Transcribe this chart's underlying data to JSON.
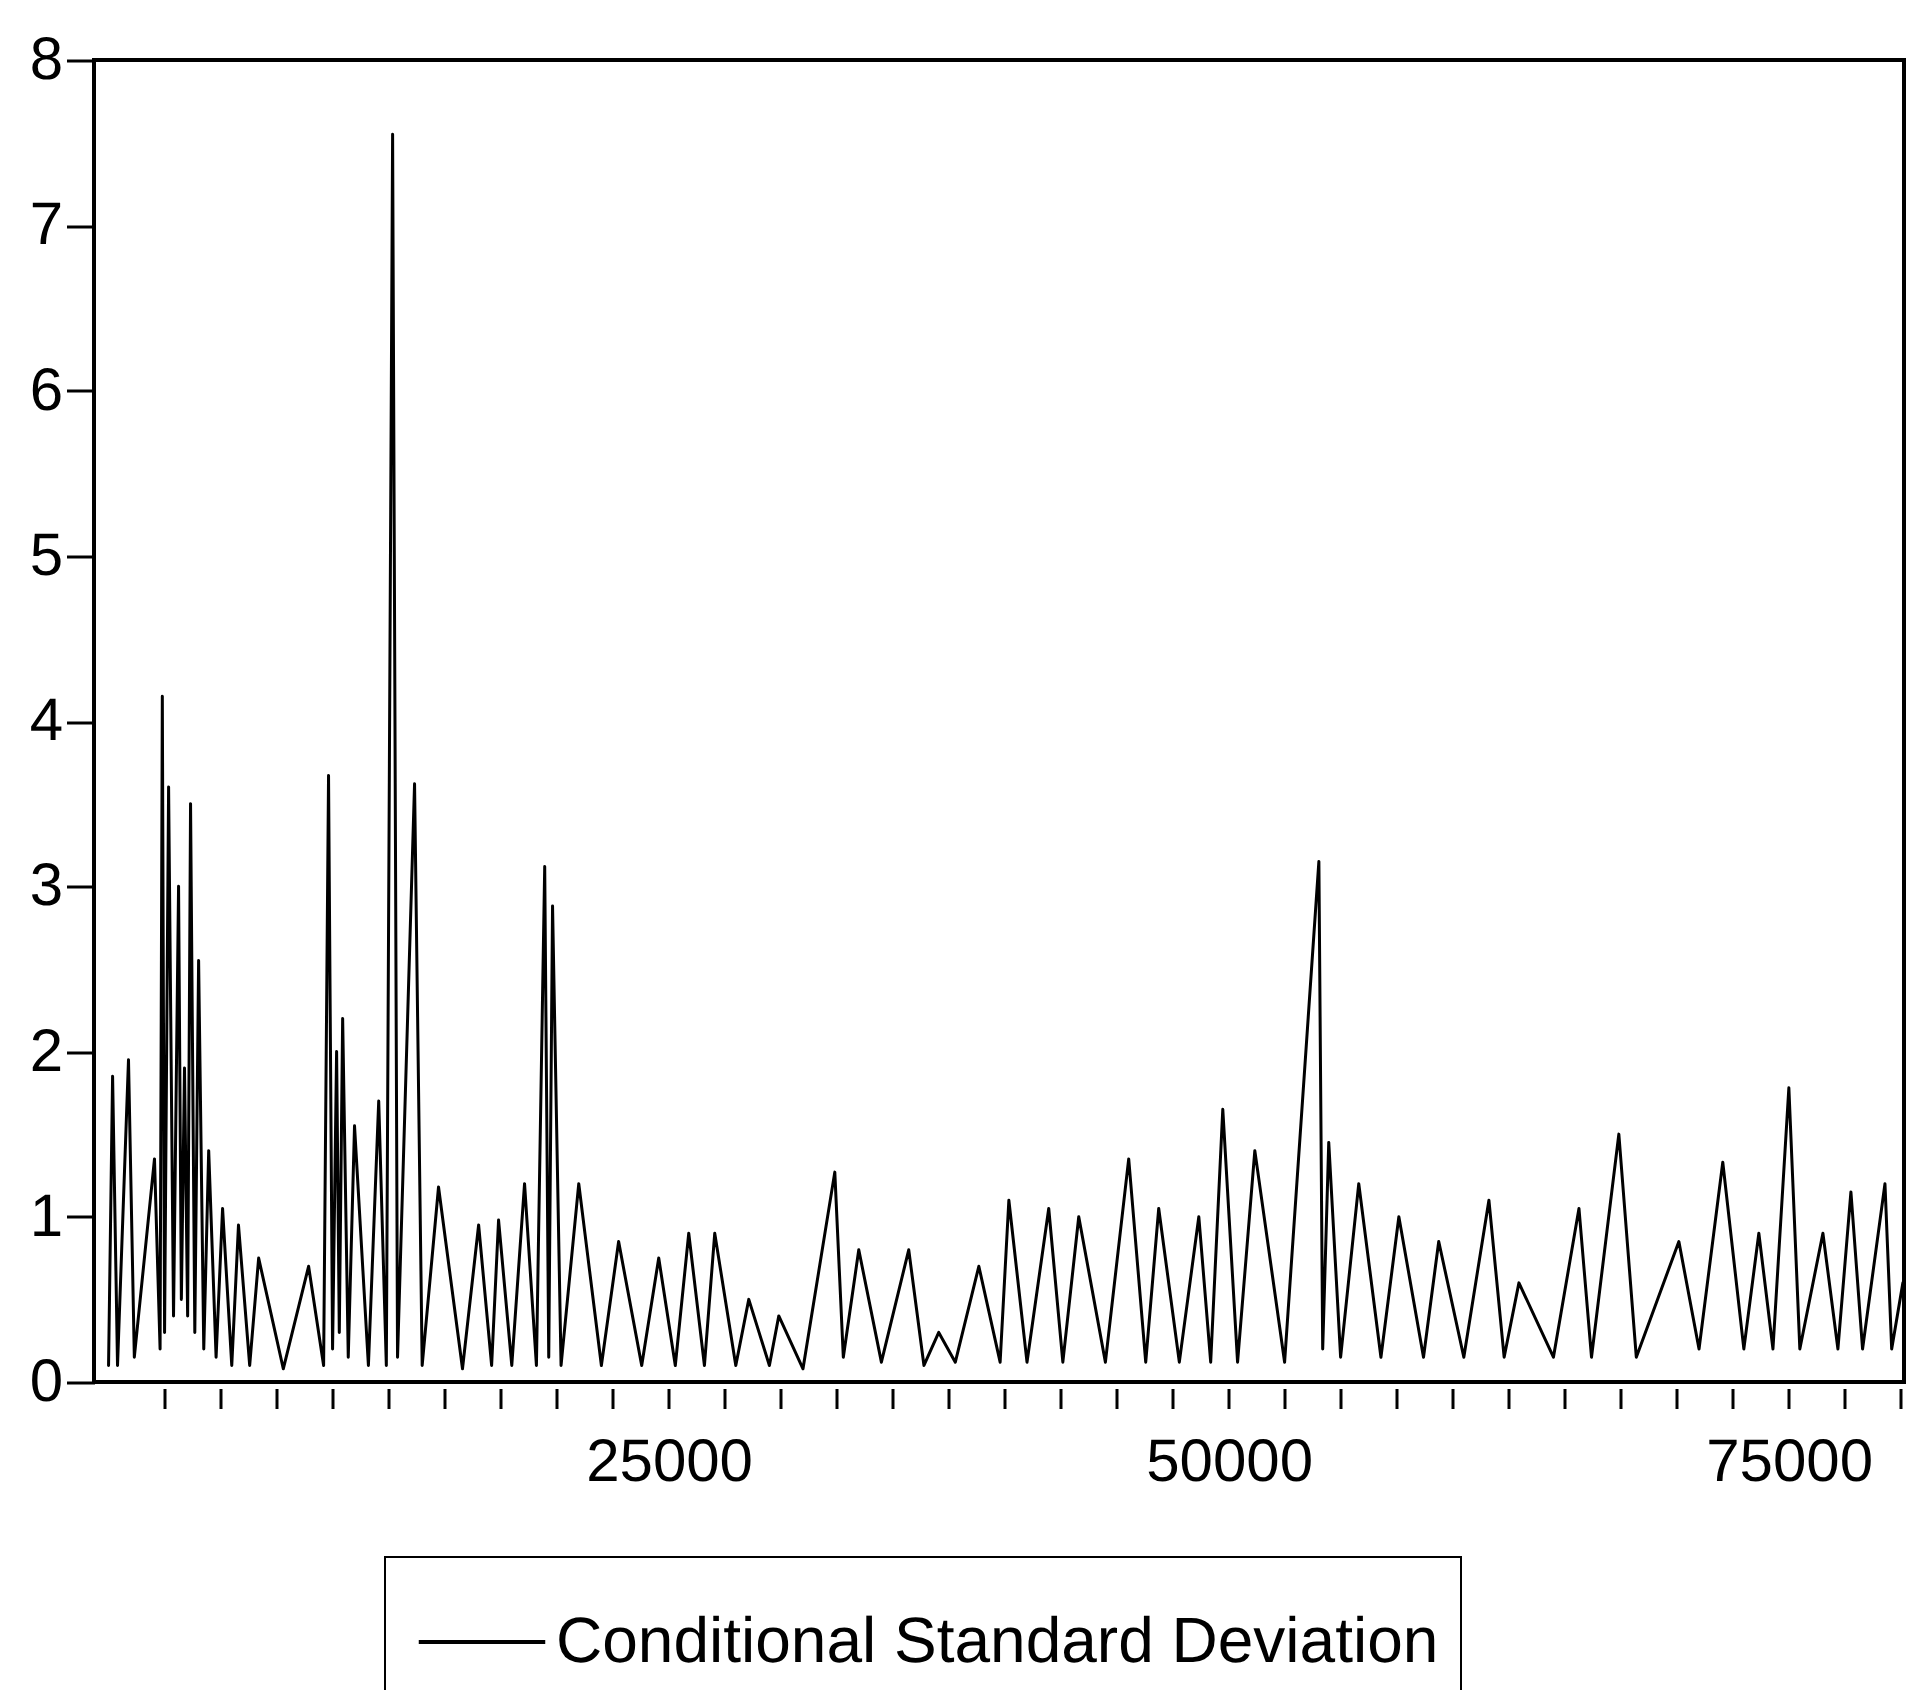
{
  "chart_data": {
    "type": "line",
    "legend": "bottom",
    "line_style": "solid",
    "xlim": [
      -650,
      80150
    ],
    "xticks": [
      {
        "value": 2500,
        "label": null
      },
      {
        "value": 5000,
        "label": null
      },
      {
        "value": 7500,
        "label": null
      },
      {
        "value": 10000,
        "label": null
      },
      {
        "value": 12500,
        "label": null
      },
      {
        "value": 15000,
        "label": null
      },
      {
        "value": 17500,
        "label": null
      },
      {
        "value": 20000,
        "label": null
      },
      {
        "value": 22500,
        "label": null
      },
      25000,
      {
        "value": 27500,
        "label": null
      },
      {
        "value": 30000,
        "label": null
      },
      {
        "value": 32500,
        "label": null
      },
      {
        "value": 35000,
        "label": null
      },
      {
        "value": 37500,
        "label": null
      },
      {
        "value": 40000,
        "label": null
      },
      {
        "value": 42500,
        "label": null
      },
      {
        "value": 45000,
        "label": null
      },
      {
        "value": 47500,
        "label": null
      },
      50000,
      {
        "value": 52500,
        "label": null
      },
      {
        "value": 55000,
        "label": null
      },
      {
        "value": 57500,
        "label": null
      },
      {
        "value": 60000,
        "label": null
      },
      {
        "value": 62500,
        "label": null
      },
      {
        "value": 65000,
        "label": null
      },
      {
        "value": 67500,
        "label": null
      },
      {
        "value": 70000,
        "label": null
      },
      {
        "value": 72500,
        "label": null
      },
      75000,
      {
        "value": 77500,
        "label": null
      },
      {
        "value": 80000,
        "label": null
      }
    ],
    "ylim": [
      0,
      8
    ],
    "yticks": [
      0,
      1,
      2,
      3,
      4,
      5,
      6,
      7,
      8
    ],
    "x": [
      0,
      180,
      400,
      890,
      1150,
      2050,
      2300,
      2400,
      2500,
      2680,
      2900,
      3125,
      3250,
      3390,
      3530,
      3660,
      3850,
      4020,
      4250,
      4470,
      4800,
      5090,
      5500,
      5800,
      6300,
      6700,
      7800,
      8930,
      9600,
      9820,
      10000,
      10180,
      10300,
      10450,
      10700,
      10980,
      11600,
      12060,
      12400,
      12680,
      12900,
      13660,
      14000,
      14730,
      15800,
      16520,
      17100,
      17410,
      18000,
      18570,
      19100,
      19470,
      19650,
      19820,
      20200,
      20990,
      22000,
      22770,
      23800,
      24560,
      25300,
      25900,
      26600,
      27060,
      28000,
      28580,
      29500,
      29920,
      31000,
      32420,
      32800,
      33490,
      34500,
      35720,
      36400,
      37060,
      37800,
      38850,
      39800,
      40190,
      41000,
      41970,
      42600,
      43310,
      44500,
      45540,
      46300,
      46880,
      47800,
      48670,
      49200,
      49740,
      50400,
      51170,
      52500,
      54030,
      54200,
      54470,
      55000,
      55810,
      56800,
      57600,
      58700,
      59380,
      60500,
      61620,
      62300,
      62960,
      64500,
      65640,
      66200,
      67420,
      68200,
      70100,
      71000,
      72060,
      73000,
      73670,
      74300,
      75010,
      75500,
      76530,
      77200,
      77780,
      78300,
      79300,
      79600,
      80100
    ],
    "series": [
      {
        "name": "Conditional Standard Deviation",
        "color": "#000000",
        "values": [
          0.1,
          1.85,
          0.1,
          1.95,
          0.15,
          1.35,
          0.2,
          4.15,
          0.3,
          3.6,
          0.4,
          3.0,
          0.5,
          1.9,
          0.4,
          3.5,
          0.3,
          2.55,
          0.2,
          1.4,
          0.15,
          1.05,
          0.1,
          0.95,
          0.1,
          0.75,
          0.08,
          0.7,
          0.1,
          3.67,
          0.2,
          2.0,
          0.3,
          2.2,
          0.15,
          1.55,
          0.1,
          1.7,
          0.1,
          7.55,
          0.15,
          3.62,
          0.1,
          1.18,
          0.08,
          0.95,
          0.1,
          0.98,
          0.1,
          1.2,
          0.1,
          3.12,
          0.15,
          2.88,
          0.1,
          1.2,
          0.1,
          0.85,
          0.1,
          0.75,
          0.1,
          0.9,
          0.1,
          0.9,
          0.1,
          0.5,
          0.1,
          0.4,
          0.08,
          1.27,
          0.15,
          0.8,
          0.12,
          0.8,
          0.1,
          0.3,
          0.12,
          0.7,
          0.12,
          1.1,
          0.12,
          1.05,
          0.12,
          1.0,
          0.12,
          1.35,
          0.12,
          1.05,
          0.12,
          1.0,
          0.12,
          1.65,
          0.12,
          1.4,
          0.12,
          3.15,
          0.2,
          1.45,
          0.15,
          1.2,
          0.15,
          1.0,
          0.15,
          0.85,
          0.15,
          1.1,
          0.15,
          0.6,
          0.15,
          1.05,
          0.15,
          1.5,
          0.15,
          0.85,
          0.2,
          1.33,
          0.2,
          0.9,
          0.2,
          1.78,
          0.2,
          0.9,
          0.2,
          1.15,
          0.2,
          1.2,
          0.2,
          0.6
        ]
      }
    ]
  }
}
